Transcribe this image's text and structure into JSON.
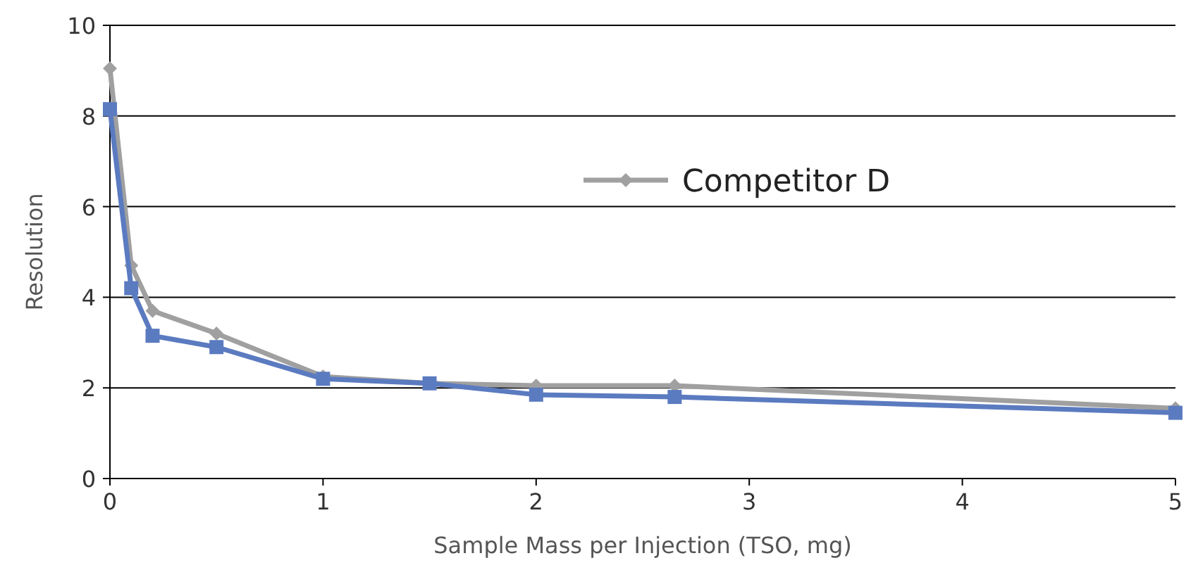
{
  "chart_data": {
    "type": "line",
    "xlabel": "Sample Mass per Injection (TSO, mg)",
    "ylabel": "Resolution",
    "x": [
      0,
      0.1,
      0.2,
      0.5,
      1,
      1.5,
      2,
      2.65,
      5
    ],
    "series": [
      {
        "color": "#5b7bc0",
        "marker": "square",
        "values": [
          8.15,
          4.2,
          3.15,
          2.9,
          2.2,
          2.1,
          1.85,
          1.8,
          1.45
        ]
      },
      {
        "name": "Competitor D",
        "color": "#a0a0a0",
        "marker": "diamond",
        "values": [
          9.05,
          4.7,
          3.7,
          3.2,
          2.25,
          2.1,
          2.05,
          2.05,
          1.55
        ]
      }
    ],
    "xlim": [
      0,
      5
    ],
    "xticks": [
      0,
      1,
      2,
      3,
      4,
      5
    ],
    "ylim": [
      0,
      10
    ],
    "yticks": [
      0,
      2,
      4,
      6,
      8,
      10
    ],
    "grid": "y",
    "legend": "top right",
    "line_style": "solid"
  }
}
